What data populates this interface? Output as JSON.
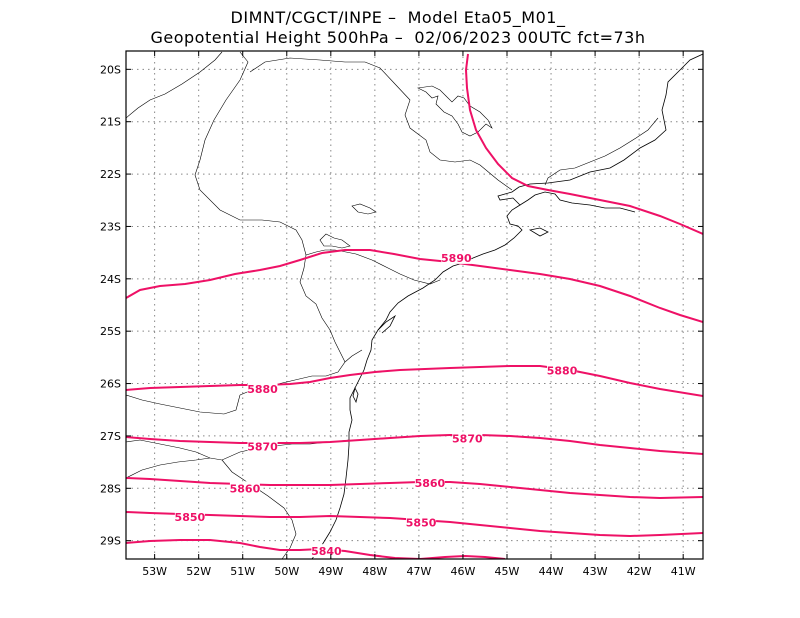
{
  "header": {
    "line1": "DIMNT/CGCT/INPE –  Model Eta05_M01_",
    "line2": "Geopotential Height 500hPa –  02/06/2023 00UTC fct=73h"
  },
  "axes": {
    "lat_labels": [
      "20S",
      "21S",
      "22S",
      "23S",
      "24S",
      "25S",
      "26S",
      "27S",
      "28S",
      "29S"
    ],
    "lon_labels": [
      "53W",
      "52W",
      "51W",
      "50W",
      "49W",
      "48W",
      "47W",
      "46W",
      "45W",
      "44W",
      "43W",
      "42W",
      "41W"
    ]
  },
  "colors": {
    "contour": "#ee1166",
    "contour_label": "#ee1166",
    "coastline": "#000000",
    "grid": "#888888"
  },
  "contours": [
    {
      "value": "5890",
      "label_lon": -46.15,
      "label_lat": -23.6
    },
    {
      "value": "5880",
      "label_lon": -50.55,
      "label_lat": -26.1
    },
    {
      "value": "5880",
      "label_lon": -43.75,
      "label_lat": -25.75
    },
    {
      "value": "5870",
      "label_lon": -50.55,
      "label_lat": -27.2
    },
    {
      "value": "5870",
      "label_lon": -45.9,
      "label_lat": -27.05
    },
    {
      "value": "5860",
      "label_lon": -50.95,
      "label_lat": -28.0
    },
    {
      "value": "5860",
      "label_lon": -46.75,
      "label_lat": -27.9
    },
    {
      "value": "5850",
      "label_lon": -52.2,
      "label_lat": -28.55
    },
    {
      "value": "5850",
      "label_lon": -46.95,
      "label_lat": -28.65
    },
    {
      "value": "5840",
      "label_lon": -49.1,
      "label_lat": -29.2
    }
  ]
}
